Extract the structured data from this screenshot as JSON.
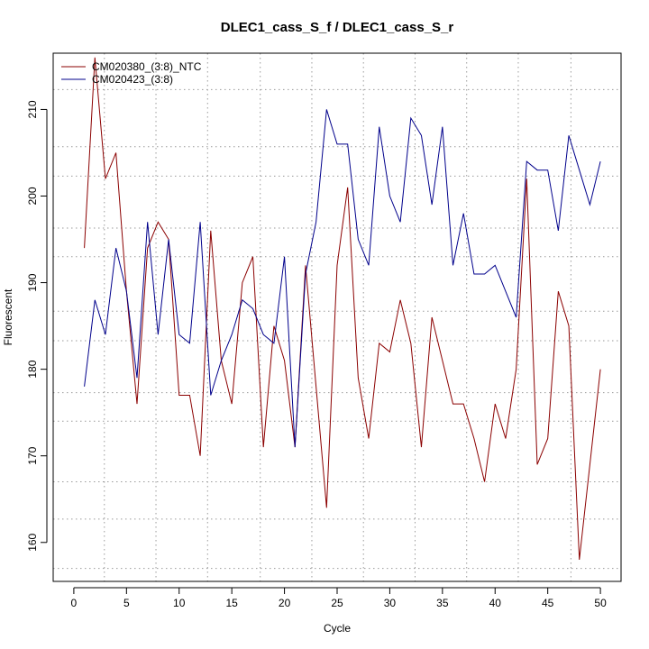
{
  "chart_data": {
    "type": "line",
    "title": "DLEC1_cass_S_f / DLEC1_cass_S_r",
    "xlabel": "Cycle",
    "ylabel": "Fluorescent",
    "xlim": [
      -1.96,
      51.96
    ],
    "ylim": [
      155.5,
      216.5
    ],
    "x_ticks": [
      0,
      5,
      10,
      15,
      20,
      25,
      30,
      35,
      40,
      45,
      50
    ],
    "y_ticks": [
      160,
      170,
      180,
      190,
      200,
      210
    ],
    "x_grid": [
      2.9,
      7.8,
      12.7,
      17.7,
      22.6,
      27.5,
      32.4,
      37.3,
      42.2,
      47.2
    ],
    "y_grid": [
      157,
      162.7,
      167,
      174,
      177.3,
      183.3,
      186.7,
      193,
      196.3,
      202.3,
      205.7,
      212.3
    ],
    "legend_position": "top-left",
    "x": [
      1,
      2,
      3,
      4,
      5,
      6,
      7,
      8,
      9,
      10,
      11,
      12,
      13,
      14,
      15,
      16,
      17,
      18,
      19,
      20,
      21,
      22,
      23,
      24,
      25,
      26,
      27,
      28,
      29,
      30,
      31,
      32,
      33,
      34,
      35,
      36,
      37,
      38,
      39,
      40,
      41,
      42,
      43,
      44,
      45,
      46,
      47,
      48,
      49,
      50
    ],
    "series": [
      {
        "name": "CM020380_(3:8)_NTC",
        "color": "#8B0000",
        "values": [
          194,
          216,
          202,
          205,
          189,
          176,
          194,
          197,
          195,
          177,
          177,
          170,
          196,
          181,
          176,
          190,
          193,
          171,
          185,
          181,
          171,
          192,
          178,
          164,
          192,
          201,
          179,
          172,
          183,
          182,
          188,
          183,
          171,
          186,
          181,
          176,
          176,
          172,
          167,
          176,
          172,
          180,
          202,
          169,
          172,
          189,
          185,
          158,
          169,
          180
        ]
      },
      {
        "name": "CM020423_(3:8)",
        "color": "#00008B",
        "values": [
          178,
          188,
          184,
          194,
          189,
          179,
          197,
          184,
          195,
          184,
          183,
          197,
          177,
          181,
          184,
          188,
          187,
          184,
          183,
          193,
          171,
          191,
          197,
          210,
          206,
          206,
          195,
          192,
          208,
          200,
          197,
          209,
          207,
          199,
          208,
          192,
          198,
          191,
          191,
          192,
          189,
          186,
          204,
          203,
          203,
          196,
          207,
          203,
          199,
          204
        ]
      }
    ]
  }
}
